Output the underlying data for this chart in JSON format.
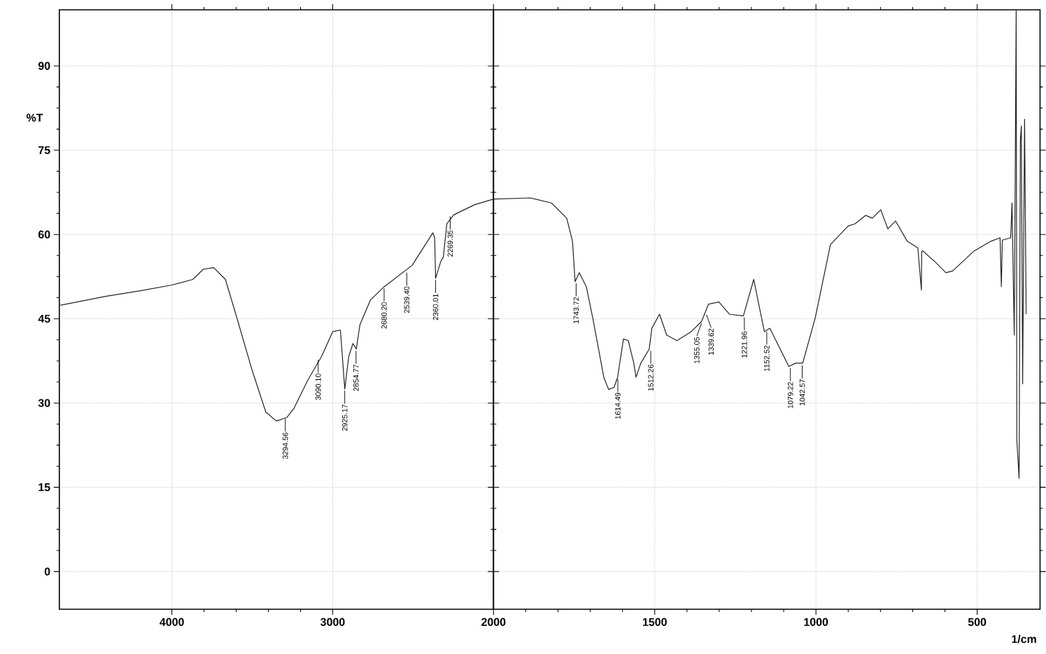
{
  "chart_data": [
    {
      "type": "line",
      "ylabel": "%T",
      "xlim": [
        4700,
        2000
      ],
      "ylim": [
        -6.7,
        100
      ],
      "xticks": [
        4000,
        3000
      ],
      "yticks": [
        0,
        15,
        30,
        45,
        60,
        75,
        90
      ],
      "grid": true,
      "series": [
        {
          "color": "#222222",
          "x": [
            4693,
            4411,
            4195,
            4000,
            3870,
            3805,
            3740,
            3667,
            3589,
            3502,
            3416,
            3351,
            3286,
            3242,
            3156,
            3069,
            3000,
            2952,
            2925,
            2900,
            2874,
            2853,
            2831,
            2766,
            2680,
            2506,
            2377,
            2366,
            2360,
            2329,
            2312,
            2290,
            2247,
            2117,
            2000
          ],
          "values": [
            47.4,
            49.0,
            50.0,
            51.0,
            52.0,
            53.8,
            54.1,
            52.0,
            44.5,
            35.9,
            28.4,
            26.8,
            27.4,
            29.0,
            34.0,
            38.3,
            42.7,
            43.0,
            32.5,
            38.3,
            40.6,
            39.6,
            43.9,
            48.3,
            50.7,
            54.5,
            60.3,
            59.4,
            52.2,
            55.1,
            56.0,
            61.9,
            63.5,
            65.3,
            66.3
          ]
        }
      ],
      "annotations": [
        {
          "text": "3294.56",
          "x": 3294.56,
          "y": 27.5
        },
        {
          "text": "3090.10",
          "x": 3090.1,
          "y": 38
        },
        {
          "text": "2925.17",
          "x": 2925.17,
          "y": 32.5
        },
        {
          "text": "2854.77",
          "x": 2854.77,
          "y": 39.6
        },
        {
          "text": "2680.20",
          "x": 2680.2,
          "y": 50.7
        },
        {
          "text": "2539.40",
          "x": 2539.4,
          "y": 53.5
        },
        {
          "text": "2360.01",
          "x": 2360.01,
          "y": 52.2
        },
        {
          "text": "2269.35",
          "x": 2269.35,
          "y": 63.5
        }
      ]
    },
    {
      "type": "line",
      "xlabel": "1/cm",
      "xlim": [
        2000,
        305
      ],
      "ylim": [
        -6.7,
        100
      ],
      "xticks": [
        2000,
        1500,
        1000,
        500
      ],
      "yticks": [
        0,
        15,
        30,
        45,
        60,
        75,
        90
      ],
      "grid": true,
      "tick_labels": "x",
      "series": [
        {
          "color": "#222222",
          "x": [
            2000,
            1885,
            1820,
            1773,
            1755,
            1747,
            1734,
            1712,
            1690,
            1658,
            1643,
            1626,
            1615,
            1597,
            1582,
            1565,
            1558,
            1543,
            1517,
            1509,
            1485,
            1463,
            1431,
            1387,
            1355,
            1333,
            1301,
            1268,
            1225,
            1193,
            1160,
            1143,
            1084,
            1063,
            1041,
            1002,
            955,
            900,
            879,
            846,
            825,
            799,
            777,
            753,
            717,
            684,
            673,
            672,
            669,
            630,
            597,
            576,
            511,
            457,
            429,
            425,
            422,
            396,
            392,
            385,
            379,
            377,
            370,
            366,
            363,
            359,
            353,
            348
          ],
          "values": [
            66.3,
            66.5,
            65.6,
            62.9,
            58.8,
            51.6,
            53.2,
            50.7,
            44.5,
            34.6,
            32.4,
            32.8,
            34.6,
            41.4,
            41.1,
            37.1,
            34.6,
            37.1,
            39.6,
            43.3,
            45.8,
            42.1,
            41.1,
            42.7,
            44.5,
            47.6,
            48.0,
            45.8,
            45.5,
            52.0,
            42.7,
            43.3,
            36.5,
            37.1,
            37.1,
            45.2,
            58.2,
            61.5,
            61.9,
            63.4,
            62.9,
            64.4,
            61.0,
            62.4,
            58.8,
            57.6,
            50.1,
            57.0,
            57.1,
            55.1,
            53.2,
            53.5,
            57.0,
            58.8,
            59.4,
            50.7,
            59.0,
            59.4,
            65.6,
            42.1,
            99.9,
            23.4,
            16.6,
            76.8,
            79.3,
            33.4,
            80.5,
            45.8
          ]
        }
      ],
      "annotations": [
        {
          "text": "1743.72",
          "x": 1743.72,
          "y": 51.6
        },
        {
          "text": "1614.49",
          "x": 1614.49,
          "y": 34.6
        },
        {
          "text": "1512.26",
          "x": 1512.26,
          "y": 39.6
        },
        {
          "text": "1355.05",
          "x": 1355.05,
          "y": 44.5
        },
        {
          "text": "1339.62",
          "x": 1339.62,
          "y": 46
        },
        {
          "text": "1221.96",
          "x": 1221.96,
          "y": 45.5
        },
        {
          "text": "1152.52",
          "x": 1152.52,
          "y": 43
        },
        {
          "text": "1079.22",
          "x": 1079.22,
          "y": 36.5
        },
        {
          "text": "1042.57",
          "x": 1042.57,
          "y": 37
        }
      ]
    }
  ]
}
